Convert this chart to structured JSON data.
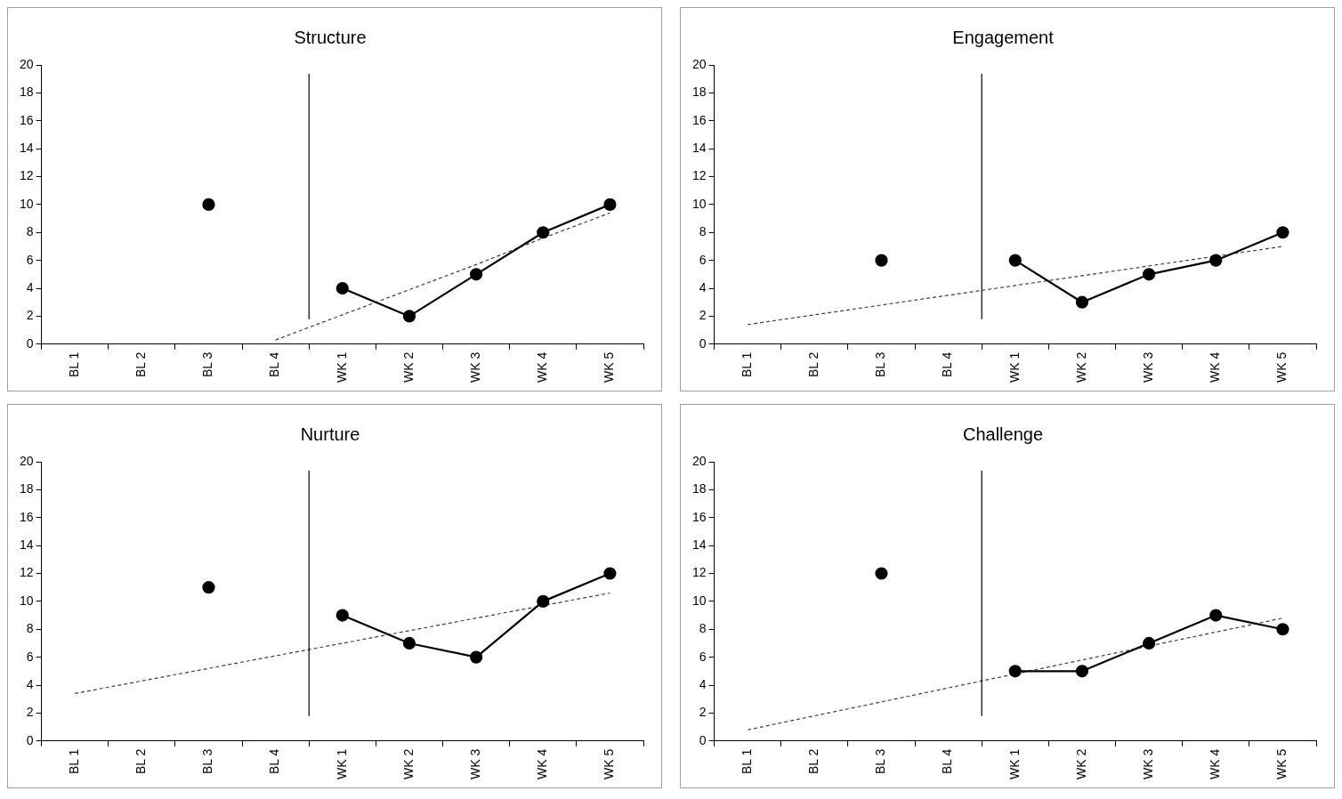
{
  "chart_data": [
    {
      "type": "line",
      "title": "Structure",
      "categories": [
        "BL 1",
        "BL 2",
        "BL 3",
        "BL 4",
        "WK 1",
        "WK 2",
        "WK 3",
        "WK 4",
        "WK 5"
      ],
      "ylim": [
        0,
        20
      ],
      "yticks": [
        0,
        2,
        4,
        6,
        8,
        10,
        12,
        14,
        16,
        18,
        20
      ],
      "marker": "circle",
      "series": [
        {
          "color": "#000000",
          "values": [
            null,
            null,
            10,
            null,
            4,
            2,
            5,
            8,
            10
          ]
        },
        {
          "type": "line",
          "color": "#404040",
          "line_style": "dashed",
          "marker": "none",
          "values": [
            null,
            null,
            null,
            0.3,
            2.1,
            3.9,
            5.7,
            7.6,
            9.4
          ]
        }
      ]
    },
    {
      "type": "line",
      "title": "Engagement",
      "categories": [
        "BL 1",
        "BL 2",
        "BL 3",
        "BL 4",
        "WK 1",
        "WK 2",
        "WK 3",
        "WK 4",
        "WK 5"
      ],
      "ylim": [
        0,
        20
      ],
      "yticks": [
        0,
        2,
        4,
        6,
        8,
        10,
        12,
        14,
        16,
        18,
        20
      ],
      "marker": "circle",
      "series": [
        {
          "color": "#000000",
          "values": [
            null,
            null,
            6,
            null,
            6,
            3,
            5,
            6,
            8
          ]
        },
        {
          "type": "line",
          "color": "#404040",
          "line_style": "dashed",
          "marker": "none",
          "values": [
            1.4,
            2.1,
            2.8,
            3.5,
            4.2,
            4.9,
            5.6,
            6.3,
            7.0
          ]
        }
      ]
    },
    {
      "type": "line",
      "title": "Nurture",
      "categories": [
        "BL 1",
        "BL 2",
        "BL 3",
        "BL 4",
        "WK 1",
        "WK 2",
        "WK 3",
        "WK 4",
        "WK 5"
      ],
      "ylim": [
        0,
        20
      ],
      "yticks": [
        0,
        2,
        4,
        6,
        8,
        10,
        12,
        14,
        16,
        18,
        20
      ],
      "marker": "circle",
      "series": [
        {
          "color": "#000000",
          "values": [
            null,
            null,
            11,
            null,
            9,
            7,
            6,
            10,
            12
          ]
        },
        {
          "type": "line",
          "color": "#404040",
          "line_style": "dashed",
          "marker": "none",
          "values": [
            3.4,
            4.3,
            5.2,
            6.1,
            7.0,
            7.9,
            8.8,
            9.7,
            10.6
          ]
        }
      ]
    },
    {
      "type": "line",
      "title": "Challenge",
      "categories": [
        "BL 1",
        "BL 2",
        "BL 3",
        "BL 4",
        "WK 1",
        "WK 2",
        "WK 3",
        "WK 4",
        "WK 5"
      ],
      "ylim": [
        0,
        20
      ],
      "yticks": [
        0,
        2,
        4,
        6,
        8,
        10,
        12,
        14,
        16,
        18,
        20
      ],
      "marker": "circle",
      "series": [
        {
          "color": "#000000",
          "values": [
            null,
            null,
            12,
            null,
            5,
            5,
            7,
            9,
            8
          ]
        },
        {
          "type": "line",
          "color": "#404040",
          "line_style": "dashed",
          "marker": "none",
          "values": [
            0.8,
            1.8,
            2.8,
            3.8,
            4.8,
            5.8,
            6.8,
            7.8,
            8.8
          ]
        }
      ]
    }
  ]
}
